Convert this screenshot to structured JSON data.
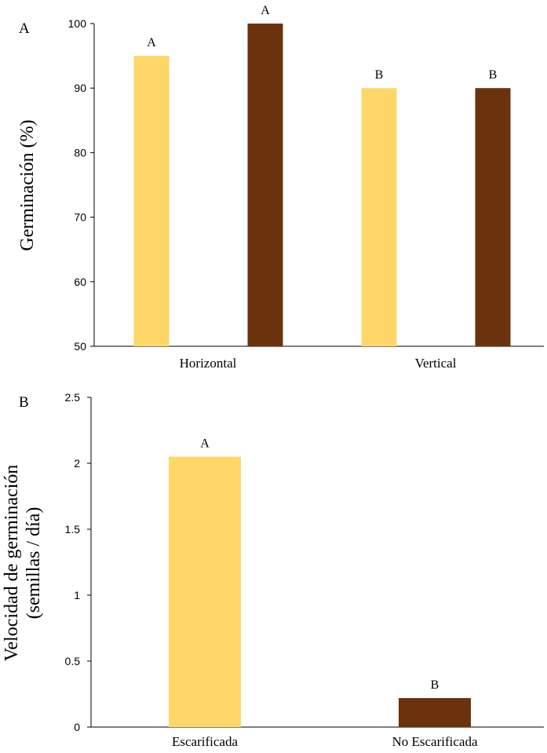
{
  "colors": {
    "light": "#FDD868",
    "dark": "#6B320E",
    "axis": "#000000"
  },
  "chart_data": [
    {
      "type": "bar",
      "panel_label": "A",
      "ylabel": "Germinación (%)",
      "ylim": [
        50,
        100
      ],
      "yticks": [
        "50",
        "60",
        "70",
        "80",
        "90",
        "100"
      ],
      "yvalues": [
        50,
        60,
        70,
        80,
        90,
        100
      ],
      "categories": [
        "Horizontal",
        "Vertical"
      ],
      "series": [
        {
          "name": "series-light",
          "values": [
            95,
            90
          ],
          "letters": [
            "A",
            "B"
          ]
        },
        {
          "name": "series-dark",
          "values": [
            100,
            90
          ],
          "letters": [
            "A",
            "B"
          ]
        }
      ]
    },
    {
      "type": "bar",
      "panel_label": "B",
      "ylabel_line1": "Velocidad de germinación",
      "ylabel_line2": "(semillas / día)",
      "ylim": [
        0,
        2.5
      ],
      "yticks": [
        "0",
        "0.5",
        "1",
        "1.5",
        "2",
        "2.5"
      ],
      "yvalues": [
        0,
        0.5,
        1,
        1.5,
        2,
        2.5
      ],
      "categories": [
        "Escarificada",
        "No Escarificada"
      ],
      "values": [
        2.05,
        0.22
      ],
      "letters": [
        "A",
        "B"
      ]
    }
  ]
}
